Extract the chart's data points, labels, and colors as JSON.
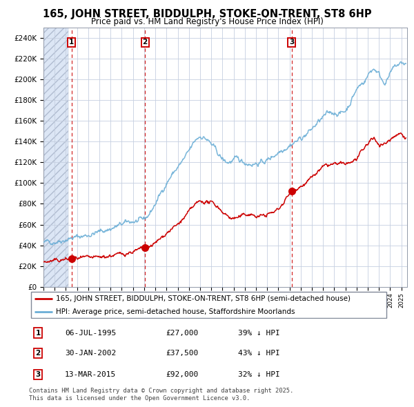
{
  "title": "165, JOHN STREET, BIDDULPH, STOKE-ON-TRENT, ST8 6HP",
  "subtitle": "Price paid vs. HM Land Registry's House Price Index (HPI)",
  "legend_line1": "165, JOHN STREET, BIDDULPH, STOKE-ON-TRENT, ST8 6HP (semi-detached house)",
  "legend_line2": "HPI: Average price, semi-detached house, Staffordshire Moorlands",
  "footer": "Contains HM Land Registry data © Crown copyright and database right 2025.\nThis data is licensed under the Open Government Licence v3.0.",
  "transactions": [
    {
      "num": 1,
      "date": "06-JUL-1995",
      "price": "£27,000",
      "pct": "39% ↓ HPI"
    },
    {
      "num": 2,
      "date": "30-JAN-2002",
      "price": "£37,500",
      "pct": "43% ↓ HPI"
    },
    {
      "num": 3,
      "date": "13-MAR-2015",
      "price": "£92,000",
      "pct": "32% ↓ HPI"
    }
  ],
  "sale_dates": [
    1995.51,
    2002.08,
    2015.19
  ],
  "sale_prices": [
    27000,
    37500,
    92000
  ],
  "hpi_color": "#6baed6",
  "price_color": "#cc0000",
  "vline_color": "#cc0000",
  "ylim": [
    0,
    250000
  ],
  "yticks": [
    0,
    20000,
    40000,
    60000,
    80000,
    100000,
    120000,
    140000,
    160000,
    180000,
    200000,
    220000,
    240000
  ],
  "xlim_start": 1993.0,
  "xlim_end": 2025.5,
  "hatch_end": 1995.2
}
